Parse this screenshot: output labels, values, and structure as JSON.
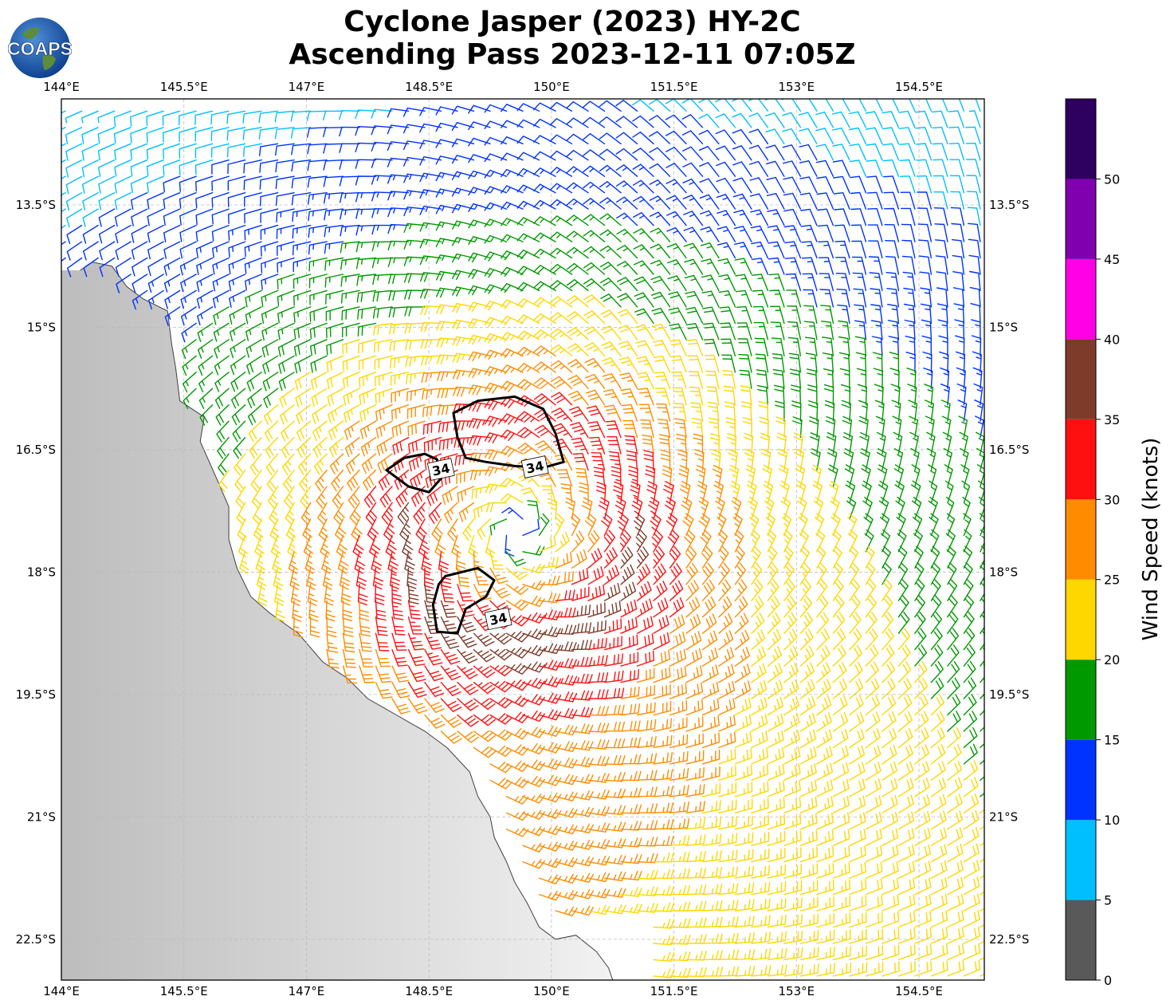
{
  "title_line1": "Cyclone Jasper (2023) HY-2C",
  "title_line2": "Ascending Pass 2023-12-11 07:05Z",
  "logo_text": "COAPS",
  "map": {
    "lon_range": [
      144.0,
      155.3
    ],
    "lat_range": [
      -23.0,
      -12.2
    ],
    "lon_ticks": [
      144,
      145.5,
      147,
      148.5,
      150,
      151.5,
      153,
      154.5
    ],
    "lon_tick_labels": [
      "144°E",
      "145.5°E",
      "147°E",
      "148.5°E",
      "150°E",
      "151.5°E",
      "153°E",
      "154.5°E"
    ],
    "lat_ticks": [
      -13.5,
      -15,
      -16.5,
      -18,
      -19.5,
      -21,
      -22.5
    ],
    "lat_tick_labels": [
      "13.5°S",
      "15°S",
      "16.5°S",
      "18°S",
      "19.5°S",
      "21°S",
      "22.5°S"
    ],
    "storm_center": {
      "lon": 149.6,
      "lat": -17.5
    },
    "contour_label": "34",
    "contour_value_knots": 34,
    "contours": [
      [
        [
          148.85,
          -16.35
        ],
        [
          148.8,
          -16.05
        ],
        [
          149.1,
          -15.9
        ],
        [
          149.55,
          -15.85
        ],
        [
          149.9,
          -16.0
        ],
        [
          150.05,
          -16.3
        ],
        [
          150.15,
          -16.65
        ],
        [
          149.9,
          -16.72
        ],
        [
          149.55,
          -16.7
        ],
        [
          149.2,
          -16.65
        ],
        [
          148.95,
          -16.6
        ],
        [
          148.85,
          -16.35
        ]
      ],
      [
        [
          148.45,
          -16.55
        ],
        [
          148.2,
          -16.6
        ],
        [
          147.98,
          -16.75
        ],
        [
          148.25,
          -16.95
        ],
        [
          148.5,
          -17.02
        ],
        [
          148.65,
          -16.85
        ],
        [
          148.6,
          -16.62
        ],
        [
          148.45,
          -16.55
        ]
      ],
      [
        [
          148.7,
          -18.05
        ],
        [
          149.1,
          -17.95
        ],
        [
          149.3,
          -18.1
        ],
        [
          149.2,
          -18.3
        ],
        [
          148.95,
          -18.45
        ],
        [
          148.85,
          -18.75
        ],
        [
          148.6,
          -18.73
        ],
        [
          148.55,
          -18.4
        ],
        [
          148.62,
          -18.15
        ],
        [
          148.7,
          -18.05
        ]
      ]
    ],
    "contour_label_positions": [
      [
        148.65,
        -16.75
      ],
      [
        149.8,
        -16.72
      ],
      [
        149.35,
        -18.58
      ]
    ],
    "coast": [
      [
        144.23,
        -14.3
      ],
      [
        144.38,
        -14.2
      ],
      [
        144.62,
        -14.25
      ],
      [
        144.8,
        -14.5
      ],
      [
        145.0,
        -14.65
      ],
      [
        145.3,
        -14.8
      ],
      [
        145.35,
        -15.2
      ],
      [
        145.4,
        -15.5
      ],
      [
        145.45,
        -15.9
      ],
      [
        145.75,
        -16.1
      ],
      [
        145.7,
        -16.4
      ],
      [
        145.9,
        -16.85
      ],
      [
        146.05,
        -17.2
      ],
      [
        146.05,
        -17.6
      ],
      [
        146.15,
        -17.95
      ],
      [
        146.32,
        -18.3
      ],
      [
        146.55,
        -18.5
      ],
      [
        146.9,
        -18.75
      ],
      [
        147.2,
        -19.1
      ],
      [
        147.5,
        -19.3
      ],
      [
        147.75,
        -19.55
      ],
      [
        148.1,
        -19.75
      ],
      [
        148.45,
        -19.95
      ],
      [
        148.72,
        -20.15
      ],
      [
        149.0,
        -20.45
      ],
      [
        149.1,
        -20.75
      ],
      [
        149.25,
        -21.0
      ],
      [
        149.3,
        -21.25
      ],
      [
        149.45,
        -21.55
      ],
      [
        149.55,
        -21.8
      ],
      [
        149.7,
        -22.05
      ],
      [
        149.85,
        -22.35
      ],
      [
        150.05,
        -22.5
      ],
      [
        150.3,
        -22.45
      ],
      [
        150.55,
        -22.65
      ],
      [
        150.7,
        -22.85
      ],
      [
        150.75,
        -23.0
      ]
    ],
    "wind_model": {
      "center_lon": 149.6,
      "center_lat": -17.5,
      "eye_radius_deg": 0.4,
      "rmw_deg": 1.4,
      "peak_knots": 36,
      "lon_step": 0.2,
      "lat_step": 0.2
    },
    "colors": {
      "land_dark": "#a0a0a0",
      "land_light": "#eeeeee",
      "coast": "#404040",
      "grid": "#bbbbbb",
      "contour": "#000000"
    }
  },
  "colorbar": {
    "label": "Wind Speed (knots)",
    "bounds": [
      0,
      5,
      10,
      15,
      20,
      25,
      30,
      35,
      40,
      45,
      50,
      55
    ],
    "colors": [
      "#595959",
      "#00bfff",
      "#0033ff",
      "#009900",
      "#ffd700",
      "#ff8c00",
      "#ff1010",
      "#7f3b2a",
      "#ff00e6",
      "#8000b0",
      "#2e0060"
    ],
    "tick_values": [
      0,
      5,
      10,
      15,
      20,
      25,
      30,
      35,
      40,
      45,
      50
    ],
    "tick_labels": [
      "0",
      "5",
      "10",
      "15",
      "20",
      "25",
      "30",
      "35",
      "40",
      "45",
      "50"
    ]
  }
}
